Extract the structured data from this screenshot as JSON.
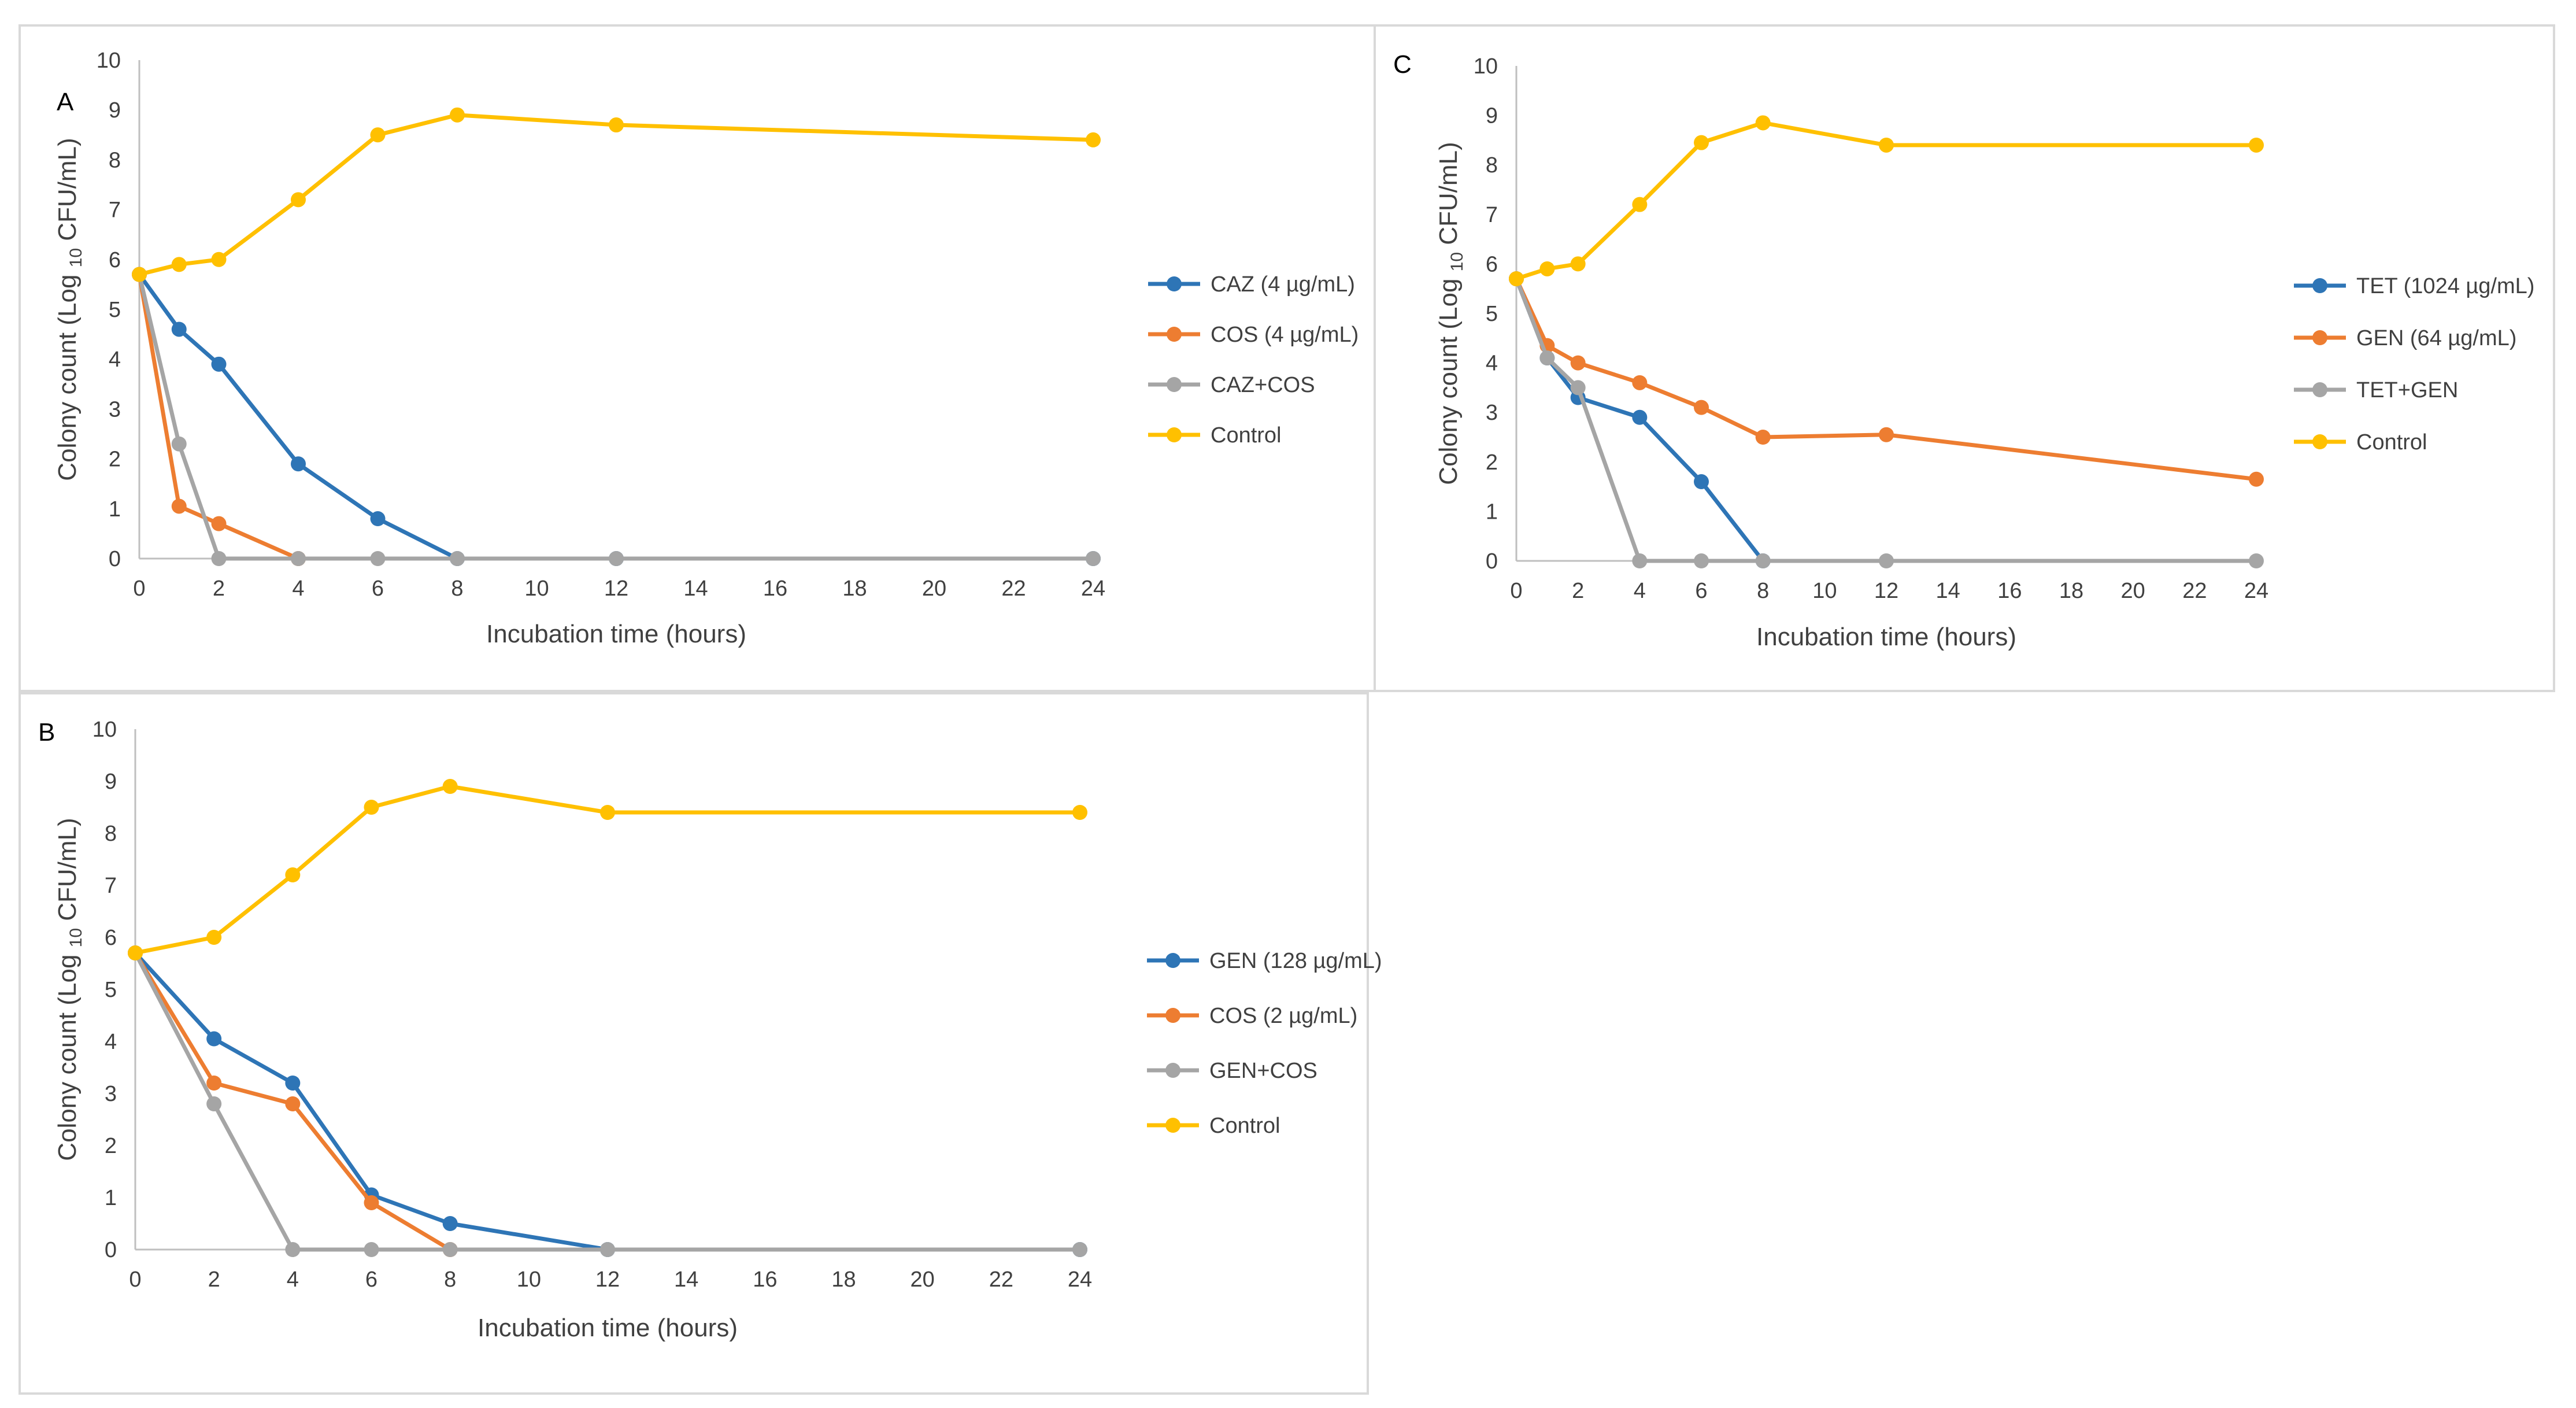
{
  "chart_data": [
    {
      "type": "line",
      "panel": "A",
      "xlabel": "Incubation time (hours)",
      "ylabel_main": "Colony count (Log ",
      "ylabel_sub": "10",
      "ylabel_end": " CFU/mL)",
      "xlim": [
        0,
        24
      ],
      "ylim": [
        0,
        10
      ],
      "xticks": [
        0,
        2,
        4,
        6,
        8,
        10,
        12,
        14,
        16,
        18,
        20,
        22,
        24
      ],
      "yticks": [
        0,
        1,
        2,
        3,
        4,
        5,
        6,
        7,
        8,
        9,
        10
      ],
      "series": [
        {
          "name": "CAZ (4 µg/mL)",
          "color": "#2e75b6",
          "x": [
            0,
            1,
            2,
            4,
            6,
            8,
            12,
            24
          ],
          "y": [
            5.7,
            4.6,
            3.9,
            1.9,
            0.8,
            0,
            0,
            0
          ]
        },
        {
          "name": "COS (4 µg/mL)",
          "color": "#ed7d31",
          "x": [
            0,
            1,
            2,
            4
          ],
          "y": [
            5.7,
            1.05,
            0.7,
            0
          ]
        },
        {
          "name": "CAZ+COS",
          "color": "#a5a5a5",
          "x": [
            0,
            1,
            2,
            4,
            6,
            8,
            12,
            24
          ],
          "y": [
            5.7,
            2.3,
            0,
            0,
            0,
            0,
            0,
            0
          ]
        },
        {
          "name": "Control",
          "color": "#ffc000",
          "x": [
            0,
            1,
            2,
            4,
            6,
            8,
            12,
            24
          ],
          "y": [
            5.7,
            5.9,
            6.0,
            7.2,
            8.5,
            8.9,
            8.7,
            8.4
          ]
        }
      ]
    },
    {
      "type": "line",
      "panel": "B",
      "xlabel": "Incubation time (hours)",
      "ylabel_main": "Colony count (Log ",
      "ylabel_sub": "10",
      "ylabel_end": " CFU/mL)",
      "xlim": [
        0,
        24
      ],
      "ylim": [
        0,
        10
      ],
      "xticks": [
        0,
        2,
        4,
        6,
        8,
        10,
        12,
        14,
        16,
        18,
        20,
        22,
        24
      ],
      "yticks": [
        0,
        1,
        2,
        3,
        4,
        5,
        6,
        7,
        8,
        9,
        10
      ],
      "series": [
        {
          "name": "GEN (128 µg/mL)",
          "color": "#2e75b6",
          "x": [
            0,
            2,
            4,
            6,
            8,
            12,
            24
          ],
          "y": [
            5.7,
            4.05,
            3.2,
            1.05,
            0.5,
            0,
            0
          ]
        },
        {
          "name": "COS (2 µg/mL)",
          "color": "#ed7d31",
          "x": [
            0,
            2,
            4,
            6,
            8
          ],
          "y": [
            5.7,
            3.2,
            2.8,
            0.9,
            0
          ]
        },
        {
          "name": "GEN+COS",
          "color": "#a5a5a5",
          "x": [
            0,
            2,
            4,
            6,
            8,
            12,
            24
          ],
          "y": [
            5.7,
            2.8,
            0,
            0,
            0,
            0,
            0
          ]
        },
        {
          "name": "Control",
          "color": "#ffc000",
          "x": [
            0,
            2,
            4,
            6,
            8,
            12,
            24
          ],
          "y": [
            5.7,
            6.0,
            7.2,
            8.5,
            8.9,
            8.4,
            8.4
          ]
        }
      ]
    },
    {
      "type": "line",
      "panel": "C",
      "xlabel": "Incubation time (hours)",
      "ylabel_main": "Colony count (Log ",
      "ylabel_sub": "10",
      "ylabel_end": " CFU/mL)",
      "xlim": [
        0,
        24
      ],
      "ylim": [
        0,
        10
      ],
      "xticks": [
        0,
        2,
        4,
        6,
        8,
        10,
        12,
        14,
        16,
        18,
        20,
        22,
        24
      ],
      "yticks": [
        0,
        1,
        2,
        3,
        4,
        5,
        6,
        7,
        8,
        9,
        10
      ],
      "series": [
        {
          "name": "TET (1024 µg/mL)",
          "color": "#2e75b6",
          "x": [
            0,
            1,
            2,
            4,
            6,
            8
          ],
          "y": [
            5.7,
            4.1,
            3.3,
            2.9,
            1.6,
            0
          ]
        },
        {
          "name": "GEN (64 µg/mL)",
          "color": "#ed7d31",
          "x": [
            0,
            1,
            2,
            4,
            6,
            8,
            12,
            24
          ],
          "y": [
            5.7,
            4.35,
            4.0,
            3.6,
            3.1,
            2.5,
            2.55,
            1.65
          ]
        },
        {
          "name": "TET+GEN",
          "color": "#a5a5a5",
          "x": [
            0,
            1,
            2,
            4,
            6,
            8,
            12,
            24
          ],
          "y": [
            5.7,
            4.1,
            3.5,
            0,
            0,
            0,
            0,
            0
          ]
        },
        {
          "name": "Control",
          "color": "#ffc000",
          "x": [
            0,
            1,
            2,
            4,
            6,
            8,
            12,
            24
          ],
          "y": [
            5.7,
            5.9,
            6.0,
            7.2,
            8.45,
            8.85,
            8.4,
            8.4
          ]
        }
      ]
    }
  ]
}
